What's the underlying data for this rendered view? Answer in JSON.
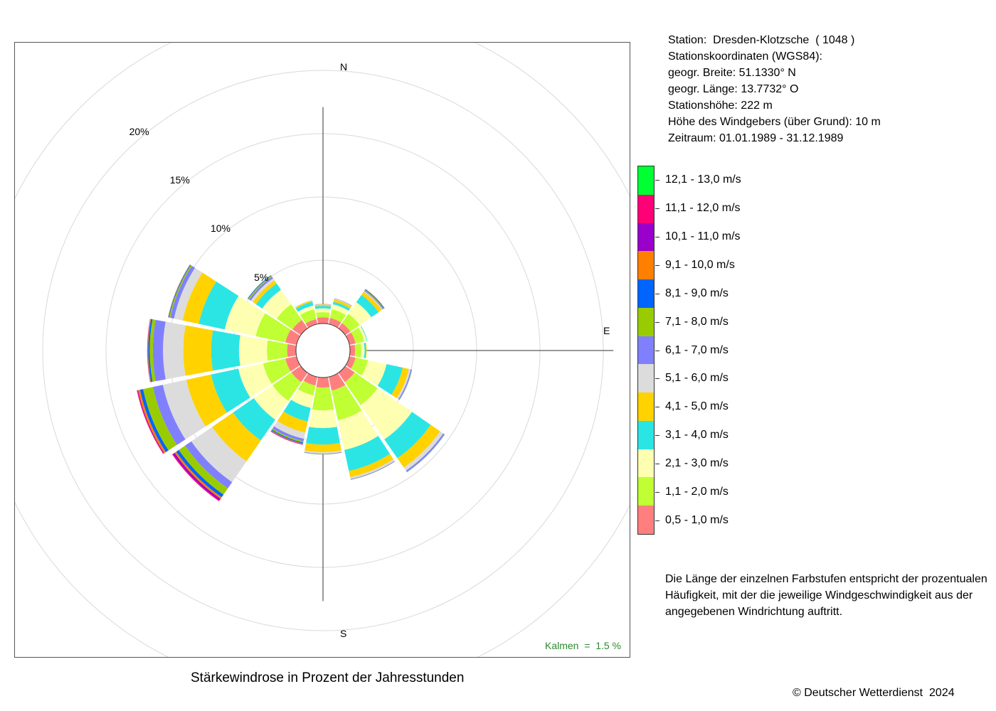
{
  "chart_data": {
    "type": "polar-stacked-bar",
    "title": "Stärkewindrose in Prozent der Jahresstunden",
    "directions": [
      "N",
      "NNE",
      "NE",
      "ENE",
      "E",
      "ESE",
      "SE",
      "SSE",
      "S",
      "SSW",
      "SW",
      "WSW",
      "W",
      "WNW",
      "NW",
      "NNW"
    ],
    "direction_labels": [
      {
        "dir": "N",
        "label": "N"
      },
      {
        "dir": "E",
        "label": "E"
      },
      {
        "dir": "S",
        "label": "S"
      }
    ],
    "rings": [
      {
        "value": 5,
        "label": "5%"
      },
      {
        "value": 10,
        "label": "10%"
      },
      {
        "value": 15,
        "label": "15%"
      },
      {
        "value": 20,
        "label": "20%"
      }
    ],
    "rmax": 25,
    "calm_percent_label": "Kalmen  =  1.5 %",
    "speed_classes": [
      {
        "label": "0,5 - 1,0 m/s",
        "color": "#ff7f7f"
      },
      {
        "label": "1,1 - 2,0 m/s",
        "color": "#bfff33"
      },
      {
        "label": "2,1 - 3,0 m/s",
        "color": "#ffffb2"
      },
      {
        "label": "3,1 - 4,0 m/s",
        "color": "#2be5e5"
      },
      {
        "label": "4,1 - 5,0 m/s",
        "color": "#ffd200"
      },
      {
        "label": "5,1 - 6,0 m/s",
        "color": "#dcdcdc"
      },
      {
        "label": "6,1 - 7,0 m/s",
        "color": "#8080ff"
      },
      {
        "label": "7,1 - 8,0 m/s",
        "color": "#99cc00"
      },
      {
        "label": "8,1 - 9,0 m/s",
        "color": "#0064ff"
      },
      {
        "label": "9,1 - 10,0 m/s",
        "color": "#ff8000"
      },
      {
        "label": "10,1 - 11,0 m/s",
        "color": "#9900cc"
      },
      {
        "label": "11,1 - 12,0 m/s",
        "color": "#ff0077"
      },
      {
        "label": "12,1 - 13,0 m/s",
        "color": "#00ff33"
      }
    ],
    "series": [
      {
        "dir": "N",
        "values": [
          0.5,
          0.4,
          0.3,
          0.2,
          0.1,
          0.03,
          0.02,
          0,
          0,
          0,
          0,
          0,
          0
        ]
      },
      {
        "dir": "NNE",
        "values": [
          0.5,
          0.7,
          0.4,
          0.2,
          0.2,
          0.05,
          0.03,
          0.01,
          0,
          0,
          0,
          0,
          0
        ]
      },
      {
        "dir": "NE",
        "values": [
          0.5,
          0.9,
          1.1,
          0.7,
          0.3,
          0.08,
          0.06,
          0.06,
          0.05,
          0.02,
          0.01,
          0,
          0
        ]
      },
      {
        "dir": "ENE",
        "values": [
          0.5,
          0.7,
          0.2,
          0.05,
          0,
          0,
          0,
          0,
          0,
          0,
          0,
          0,
          0
        ]
      },
      {
        "dir": "E",
        "values": [
          0.4,
          0.5,
          0.25,
          0.12,
          0.05,
          0,
          0,
          0,
          0,
          0,
          0,
          0,
          0
        ]
      },
      {
        "dir": "ESE",
        "values": [
          0.5,
          1.0,
          1.5,
          1.3,
          0.5,
          0.15,
          0.08,
          0.02,
          0.01,
          0,
          0,
          0,
          0
        ]
      },
      {
        "dir": "SE",
        "values": [
          0.9,
          2.2,
          3.3,
          1.8,
          0.9,
          0.3,
          0.12,
          0.02,
          0.01,
          0,
          0,
          0,
          0
        ]
      },
      {
        "dir": "SSE",
        "values": [
          1.1,
          2.4,
          2.4,
          1.7,
          0.5,
          0.15,
          0.05,
          0.02,
          0,
          0,
          0,
          0,
          0
        ]
      },
      {
        "dir": "S",
        "values": [
          0.8,
          1.8,
          1.4,
          1.3,
          0.6,
          0.12,
          0.04,
          0.02,
          0,
          0,
          0,
          0,
          0
        ]
      },
      {
        "dir": "SSW",
        "values": [
          0.7,
          0.8,
          1.0,
          1.1,
          0.9,
          0.5,
          0.2,
          0.1,
          0.08,
          0.05,
          0.03,
          0.02,
          0
        ]
      },
      {
        "dir": "SW",
        "values": [
          0.9,
          1.8,
          1.8,
          2.0,
          2.0,
          2.0,
          0.6,
          0.6,
          0.25,
          0.15,
          0.15,
          0.08,
          0
        ]
      },
      {
        "dir": "WSW",
        "values": [
          0.9,
          1.8,
          2.0,
          2.2,
          2.0,
          1.9,
          0.8,
          0.8,
          0.25,
          0.15,
          0.05,
          0.05,
          0
        ]
      },
      {
        "dir": "W",
        "values": [
          0.7,
          1.6,
          2.2,
          2.2,
          2.2,
          1.6,
          0.8,
          0.25,
          0.12,
          0.05,
          0.02,
          0.01,
          0
        ]
      },
      {
        "dir": "WNW",
        "values": [
          0.9,
          2.4,
          2.5,
          2.1,
          1.3,
          0.7,
          0.3,
          0.1,
          0.05,
          0.02,
          0.01,
          0,
          0
        ]
      },
      {
        "dir": "NW",
        "values": [
          0.8,
          1.5,
          1.4,
          0.6,
          0.3,
          0.2,
          0.15,
          0.1,
          0.05,
          0,
          0,
          0,
          0
        ]
      },
      {
        "dir": "NNW",
        "values": [
          0.4,
          0.8,
          0.3,
          0.3,
          0.1,
          0.02,
          0.01,
          0,
          0,
          0,
          0,
          0,
          0
        ]
      }
    ]
  },
  "station_info": [
    "Station:  Dresden-Klotzsche  ( 1048 )",
    "Stationskoordinaten (WGS84):",
    "geogr. Breite: 51.1330° N",
    "geogr. Länge: 13.7732° O",
    "Stationshöhe: 222 m",
    "Höhe des Windgebers (über Grund): 10 m",
    "Zeitraum: 01.01.1989 - 31.12.1989"
  ],
  "note": "Die Länge der einzelnen Farbstufen entspricht der prozentualen Häufigkeit, mit der die jeweilige Windgeschwindigkeit aus der angegebenen Windrichtung auftritt.",
  "copyright": "© Deutscher Wetterdienst  2024"
}
